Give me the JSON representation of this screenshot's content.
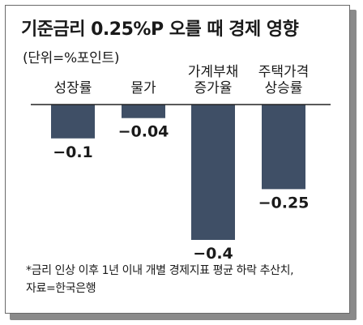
{
  "title": "기준금리 0.25%P 오를 때 경제 영향",
  "subtitle": "(단위=%포인트)",
  "footnotes": [
    "*금리 인상 이후 1년 이내 개별 경제지표 평균 하락 추산치,",
    "자료=한국은행"
  ],
  "colors": {
    "bar": "#3f4f66",
    "axis": "#222222",
    "text": "#1a1a1a"
  },
  "chart_data": {
    "type": "bar",
    "categories": [
      [
        "성장률"
      ],
      [
        "물가"
      ],
      [
        "가계부채",
        "증가율"
      ],
      [
        "주택가격",
        "상승률"
      ]
    ],
    "values": [
      -0.1,
      -0.04,
      -0.4,
      -0.25
    ],
    "value_labels": [
      "−0.1",
      "−0.04",
      "−0.4",
      "−0.25"
    ],
    "ylim": [
      -0.4,
      0
    ],
    "grid": false,
    "legend": "none"
  }
}
